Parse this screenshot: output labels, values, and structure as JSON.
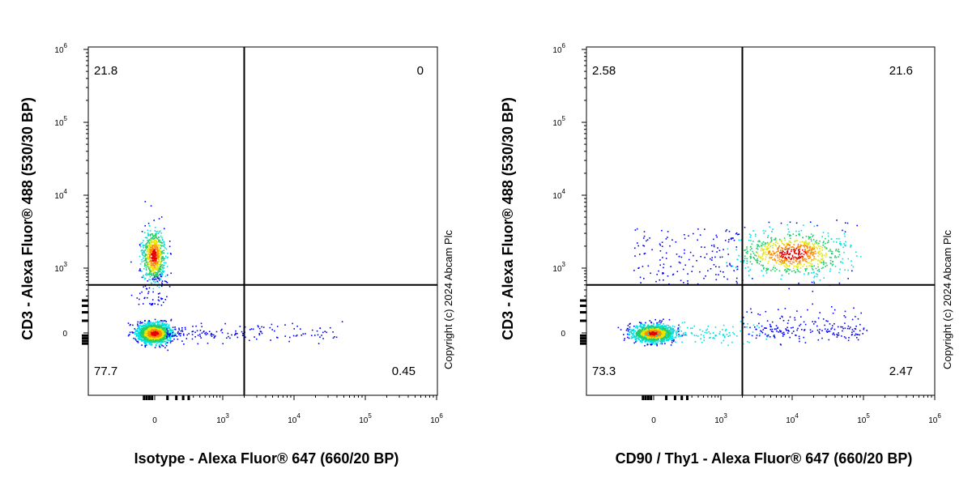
{
  "chart_data": [
    {
      "type": "scatter",
      "panel": "left",
      "xlabel": "Isotype - Alexa Fluor® 647 (660/20 BP)",
      "ylabel": "CD3 - Alexa Fluor® 488 (530/30 BP)",
      "x_scale": "biexponential",
      "y_scale": "biexponential",
      "xlim": [
        -1000,
        1000000
      ],
      "ylim": [
        -600,
        1000000
      ],
      "x_ticks": [
        {
          "value": 0,
          "base": "0",
          "exp": ""
        },
        {
          "value": 1000,
          "base": "10",
          "exp": "3"
        },
        {
          "value": 10000,
          "base": "10",
          "exp": "4"
        },
        {
          "value": 100000,
          "base": "10",
          "exp": "5"
        },
        {
          "value": 1000000,
          "base": "10",
          "exp": "6"
        }
      ],
      "y_ticks": [
        {
          "value": 0,
          "base": "0",
          "exp": ""
        },
        {
          "value": 1000,
          "base": "10",
          "exp": "3"
        },
        {
          "value": 10000,
          "base": "10",
          "exp": "4"
        },
        {
          "value": 100000,
          "base": "10",
          "exp": "5"
        },
        {
          "value": 1000000,
          "base": "10",
          "exp": "6"
        }
      ],
      "gate": {
        "x": 2000,
        "y": 500
      },
      "quadrants": {
        "upper_left": "21.8",
        "upper_right": "0",
        "lower_left": "77.7",
        "lower_right": "0.45"
      },
      "populations": [
        {
          "cx": -30,
          "cy": 1500,
          "n": 700,
          "note": "CD3+ Isotype-"
        },
        {
          "cx": -20,
          "cy": 0,
          "n": 1800,
          "note": "CD3- Isotype-"
        }
      ],
      "colors": {
        "low": "#0000ff",
        "mid": "#00e0e0",
        "high": "#ff0000"
      }
    },
    {
      "type": "scatter",
      "panel": "right",
      "xlabel": "CD90 / Thy1 - Alexa Fluor® 647 (660/20 BP)",
      "ylabel": "CD3 - Alexa Fluor® 488 (530/30 BP)",
      "x_scale": "biexponential",
      "y_scale": "biexponential",
      "xlim": [
        -1000,
        1000000
      ],
      "ylim": [
        -600,
        1000000
      ],
      "x_ticks": [
        {
          "value": 0,
          "base": "0",
          "exp": ""
        },
        {
          "value": 1000,
          "base": "10",
          "exp": "3"
        },
        {
          "value": 10000,
          "base": "10",
          "exp": "4"
        },
        {
          "value": 100000,
          "base": "10",
          "exp": "5"
        },
        {
          "value": 1000000,
          "base": "10",
          "exp": "6"
        }
      ],
      "y_ticks": [
        {
          "value": 0,
          "base": "0",
          "exp": ""
        },
        {
          "value": 1000,
          "base": "10",
          "exp": "3"
        },
        {
          "value": 10000,
          "base": "10",
          "exp": "4"
        },
        {
          "value": 100000,
          "base": "10",
          "exp": "5"
        },
        {
          "value": 1000000,
          "base": "10",
          "exp": "6"
        }
      ],
      "gate": {
        "x": 2000,
        "y": 500
      },
      "quadrants": {
        "upper_left": "2.58",
        "upper_right": "21.6",
        "lower_left": "73.3",
        "lower_right": "2.47"
      },
      "populations": [
        {
          "cx": -20,
          "cy": 0,
          "n": 1500,
          "note": "CD3- CD90-"
        },
        {
          "cx": 10000,
          "cy": 1600,
          "n": 800,
          "note": "CD3+ CD90+"
        }
      ],
      "colors": {
        "low": "#0000ff",
        "mid": "#00e0e0",
        "high": "#ff0000"
      }
    }
  ],
  "copyright": "Copyright (c) 2024 Abcam Plc"
}
